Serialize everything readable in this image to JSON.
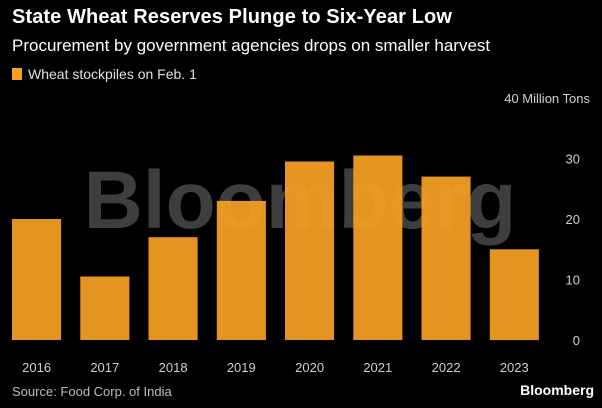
{
  "title": "State Wheat Reserves Plunge to Six-Year Low",
  "subtitle": "Procurement by government agencies drops on smaller harvest",
  "legend_label": "Wheat stockpiles on Feb. 1",
  "source": "Source: Food Corp. of India",
  "logo": "Bloomberg",
  "watermark": "Bloomberg",
  "colors": {
    "bar": "#F5A023",
    "background": "#000000",
    "text": "#ffffff"
  },
  "chart_data": {
    "type": "bar",
    "categories": [
      "2016",
      "2017",
      "2018",
      "2019",
      "2020",
      "2021",
      "2022",
      "2023"
    ],
    "series": [
      {
        "name": "Wheat stockpiles on Feb. 1",
        "values": [
          20,
          10.5,
          17,
          23,
          29.5,
          30.5,
          27,
          15
        ]
      }
    ],
    "ylim": [
      0,
      40
    ],
    "yticks": [
      0,
      10,
      20,
      30,
      40
    ],
    "ytick_labels": [
      "0",
      "10",
      "20",
      "30",
      "40 Million Tons"
    ],
    "ylabel": "",
    "xlabel": "",
    "grid": false,
    "legend_position": "top-left"
  }
}
